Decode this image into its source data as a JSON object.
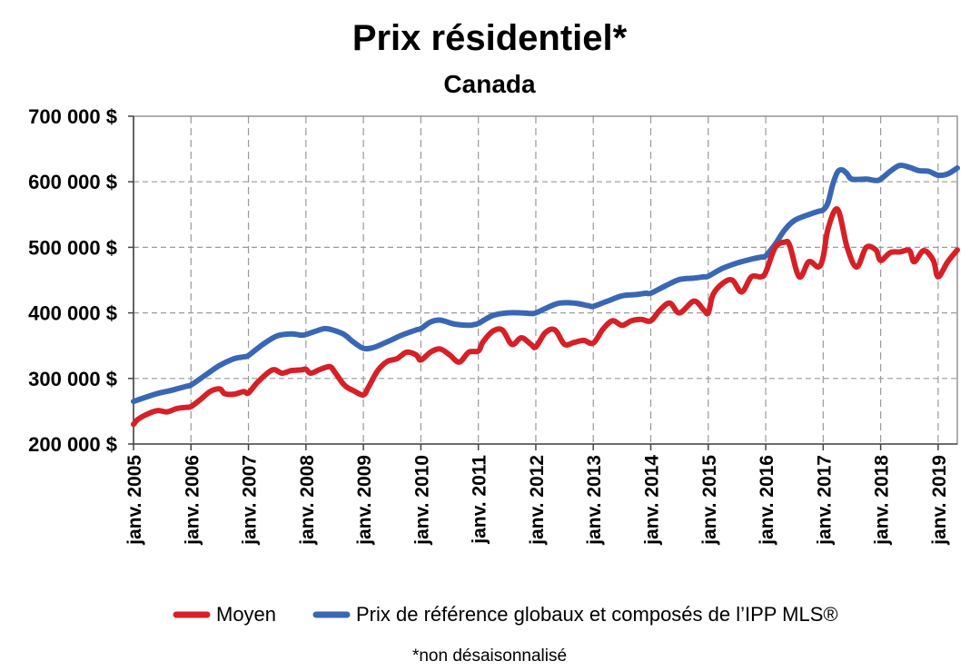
{
  "chart_data": {
    "type": "line",
    "title": "Prix résidentiel*",
    "subtitle": "Canada",
    "footnote": "*non désaisonnalisé",
    "xlabel": "",
    "ylabel": "",
    "ylim": [
      200000,
      700000
    ],
    "xlim": [
      "2005-01",
      "2019-05"
    ],
    "yticks": [
      200000,
      300000,
      400000,
      500000,
      600000,
      700000
    ],
    "ytick_labels": [
      "200 000 $",
      "300 000 $",
      "400 000 $",
      "500 000 $",
      "600 000 $",
      "700 000 $"
    ],
    "xtick_labels": [
      "janv. 2005",
      "janv. 2006",
      "janv. 2007",
      "janv. 2008",
      "janv. 2009",
      "janv. 2010",
      "janv. 2011",
      "janv. 2012",
      "janv. 2013",
      "janv. 2014",
      "janv. 2015",
      "janv. 2016",
      "janv. 2017",
      "janv. 2018",
      "janv. 2019"
    ],
    "grid": true,
    "legend_position": "bottom",
    "series": [
      {
        "name": "Moyen",
        "color": "#d62027",
        "points": [
          [
            "2005-01",
            230000
          ],
          [
            "2005-02",
            238000
          ],
          [
            "2005-04",
            246000
          ],
          [
            "2005-06",
            251000
          ],
          [
            "2005-08",
            249000
          ],
          [
            "2005-10",
            254000
          ],
          [
            "2005-12",
            256000
          ],
          [
            "2006-01",
            257000
          ],
          [
            "2006-03",
            268000
          ],
          [
            "2006-05",
            280000
          ],
          [
            "2006-07",
            284000
          ],
          [
            "2006-08",
            277000
          ],
          [
            "2006-10",
            276000
          ],
          [
            "2006-12",
            280000
          ],
          [
            "2007-01",
            278000
          ],
          [
            "2007-03",
            295000
          ],
          [
            "2007-06",
            313000
          ],
          [
            "2007-08",
            308000
          ],
          [
            "2007-10",
            312000
          ],
          [
            "2007-12",
            313000
          ],
          [
            "2008-01",
            314000
          ],
          [
            "2008-02",
            308000
          ],
          [
            "2008-04",
            314000
          ],
          [
            "2008-06",
            318000
          ],
          [
            "2008-07",
            310000
          ],
          [
            "2008-09",
            290000
          ],
          [
            "2008-11",
            281000
          ],
          [
            "2009-01",
            275000
          ],
          [
            "2009-02",
            286000
          ],
          [
            "2009-04",
            312000
          ],
          [
            "2009-06",
            326000
          ],
          [
            "2009-08",
            330000
          ],
          [
            "2009-10",
            340000
          ],
          [
            "2009-12",
            336000
          ],
          [
            "2010-01",
            328000
          ],
          [
            "2010-03",
            340000
          ],
          [
            "2010-05",
            345000
          ],
          [
            "2010-07",
            336000
          ],
          [
            "2010-09",
            325000
          ],
          [
            "2010-11",
            340000
          ],
          [
            "2011-01",
            342000
          ],
          [
            "2011-02",
            356000
          ],
          [
            "2011-04",
            372000
          ],
          [
            "2011-06",
            374000
          ],
          [
            "2011-08",
            352000
          ],
          [
            "2011-10",
            362000
          ],
          [
            "2011-12",
            352000
          ],
          [
            "2012-01",
            348000
          ],
          [
            "2012-03",
            370000
          ],
          [
            "2012-05",
            374000
          ],
          [
            "2012-07",
            352000
          ],
          [
            "2012-09",
            355000
          ],
          [
            "2012-11",
            358000
          ],
          [
            "2013-01",
            354000
          ],
          [
            "2013-03",
            375000
          ],
          [
            "2013-05",
            388000
          ],
          [
            "2013-07",
            381000
          ],
          [
            "2013-09",
            388000
          ],
          [
            "2013-11",
            390000
          ],
          [
            "2014-01",
            388000
          ],
          [
            "2014-03",
            405000
          ],
          [
            "2014-05",
            415000
          ],
          [
            "2014-07",
            400000
          ],
          [
            "2014-10",
            418000
          ],
          [
            "2014-12",
            405000
          ],
          [
            "2015-01",
            400000
          ],
          [
            "2015-02",
            428000
          ],
          [
            "2015-04",
            445000
          ],
          [
            "2015-06",
            450000
          ],
          [
            "2015-08",
            432000
          ],
          [
            "2015-10",
            455000
          ],
          [
            "2015-12",
            455000
          ],
          [
            "2016-01",
            462000
          ],
          [
            "2016-03",
            500000
          ],
          [
            "2016-05",
            508000
          ],
          [
            "2016-06",
            503000
          ],
          [
            "2016-08",
            455000
          ],
          [
            "2016-10",
            478000
          ],
          [
            "2016-12",
            470000
          ],
          [
            "2017-01",
            485000
          ],
          [
            "2017-02",
            528000
          ],
          [
            "2017-04",
            558000
          ],
          [
            "2017-06",
            500000
          ],
          [
            "2017-08",
            470000
          ],
          [
            "2017-10",
            500000
          ],
          [
            "2017-12",
            496000
          ],
          [
            "2018-01",
            480000
          ],
          [
            "2018-03",
            492000
          ],
          [
            "2018-05",
            493000
          ],
          [
            "2018-07",
            495000
          ],
          [
            "2018-08",
            478000
          ],
          [
            "2018-10",
            495000
          ],
          [
            "2018-12",
            480000
          ],
          [
            "2019-01",
            455000
          ],
          [
            "2019-03",
            478000
          ],
          [
            "2019-05",
            496000
          ]
        ]
      },
      {
        "name": "Prix de référence globaux et composés de l’IPP MLS®",
        "color": "#3a67b4",
        "points": [
          [
            "2005-01",
            265000
          ],
          [
            "2005-03",
            270000
          ],
          [
            "2005-06",
            277000
          ],
          [
            "2005-09",
            282000
          ],
          [
            "2005-12",
            288000
          ],
          [
            "2006-01",
            290000
          ],
          [
            "2006-04",
            305000
          ],
          [
            "2006-07",
            320000
          ],
          [
            "2006-10",
            330000
          ],
          [
            "2006-12",
            333000
          ],
          [
            "2007-01",
            335000
          ],
          [
            "2007-04",
            352000
          ],
          [
            "2007-07",
            365000
          ],
          [
            "2007-10",
            368000
          ],
          [
            "2007-12",
            366000
          ],
          [
            "2008-01",
            367000
          ],
          [
            "2008-03",
            372000
          ],
          [
            "2008-05",
            376000
          ],
          [
            "2008-07",
            373000
          ],
          [
            "2008-09",
            367000
          ],
          [
            "2008-11",
            355000
          ],
          [
            "2009-01",
            346000
          ],
          [
            "2009-03",
            347000
          ],
          [
            "2009-06",
            356000
          ],
          [
            "2009-09",
            366000
          ],
          [
            "2009-12",
            374000
          ],
          [
            "2010-01",
            376000
          ],
          [
            "2010-03",
            386000
          ],
          [
            "2010-05",
            389000
          ],
          [
            "2010-08",
            383000
          ],
          [
            "2010-11",
            381000
          ],
          [
            "2010-12",
            382000
          ],
          [
            "2011-01",
            384000
          ],
          [
            "2011-04",
            396000
          ],
          [
            "2011-07",
            400000
          ],
          [
            "2011-10",
            400000
          ],
          [
            "2011-12",
            399000
          ],
          [
            "2012-01",
            400000
          ],
          [
            "2012-04",
            410000
          ],
          [
            "2012-06",
            415000
          ],
          [
            "2012-09",
            415000
          ],
          [
            "2012-12",
            411000
          ],
          [
            "2013-01",
            410000
          ],
          [
            "2013-04",
            418000
          ],
          [
            "2013-07",
            426000
          ],
          [
            "2013-10",
            428000
          ],
          [
            "2013-12",
            430000
          ],
          [
            "2014-01",
            430000
          ],
          [
            "2014-04",
            441000
          ],
          [
            "2014-07",
            451000
          ],
          [
            "2014-10",
            453000
          ],
          [
            "2014-12",
            455000
          ],
          [
            "2015-01",
            456000
          ],
          [
            "2015-04",
            468000
          ],
          [
            "2015-07",
            476000
          ],
          [
            "2015-10",
            482000
          ],
          [
            "2015-12",
            485000
          ],
          [
            "2016-01",
            487000
          ],
          [
            "2016-03",
            505000
          ],
          [
            "2016-05",
            527000
          ],
          [
            "2016-07",
            541000
          ],
          [
            "2016-10",
            550000
          ],
          [
            "2016-12",
            555000
          ],
          [
            "2017-01",
            557000
          ],
          [
            "2017-02",
            568000
          ],
          [
            "2017-03",
            596000
          ],
          [
            "2017-04",
            615000
          ],
          [
            "2017-05",
            618000
          ],
          [
            "2017-06",
            612000
          ],
          [
            "2017-07",
            604000
          ],
          [
            "2017-10",
            604000
          ],
          [
            "2017-12",
            602000
          ],
          [
            "2018-01",
            604000
          ],
          [
            "2018-03",
            616000
          ],
          [
            "2018-05",
            625000
          ],
          [
            "2018-07",
            622000
          ],
          [
            "2018-09",
            617000
          ],
          [
            "2018-11",
            616000
          ],
          [
            "2019-01",
            610000
          ],
          [
            "2019-03",
            612000
          ],
          [
            "2019-05",
            621000
          ]
        ]
      }
    ]
  }
}
